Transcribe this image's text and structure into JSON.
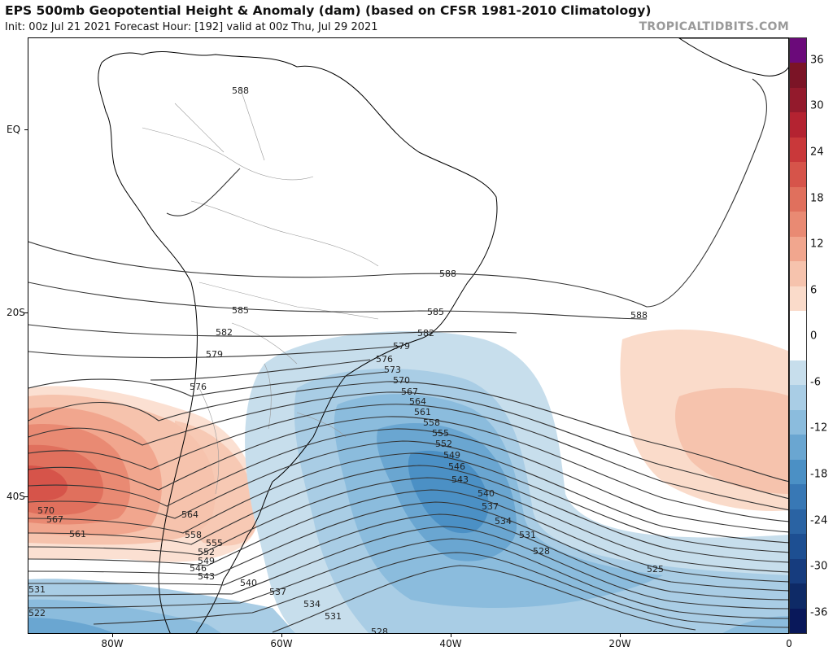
{
  "header": {
    "title": "EPS 500mb Geopotential Height & Anomaly (dam) (based on CFSR 1981-2010 Climatology)",
    "subtitle": "Init: 00z Jul 21 2021   Forecast Hour: [192]   valid at 00z Thu, Jul 29 2021",
    "credit": "TROPICALTIDBITS.COM"
  },
  "axes": {
    "lat_labels": [
      "EQ",
      "20S",
      "40S"
    ],
    "lon_labels": [
      "80W",
      "60W",
      "40W",
      "20W",
      "0"
    ]
  },
  "colorbar": {
    "labels": [
      "36",
      "30",
      "24",
      "18",
      "12",
      "6",
      "0",
      "-6",
      "-12",
      "-18",
      "-24",
      "-30",
      "-36"
    ],
    "colors_top_to_bottom": [
      "#6b0a7a",
      "#7b1426",
      "#931a2c",
      "#b42331",
      "#c9383a",
      "#d6544a",
      "#e0705d",
      "#e98a73",
      "#f1a68e",
      "#f6c3ad",
      "#fadbca",
      "#ffffff",
      "#ffffff",
      "#c7deec",
      "#a9cde5",
      "#8bbcdd",
      "#6aa6d1",
      "#4b90c5",
      "#3878b5",
      "#2a63a3",
      "#1d4f92",
      "#163c7e",
      "#0e2a66",
      "#09185a"
    ]
  },
  "contour_labels": {
    "north": [
      "588",
      "588",
      "588",
      "585",
      "585",
      "582",
      "582",
      "579",
      "579"
    ],
    "middle": [
      "576",
      "576",
      "573",
      "570",
      "567",
      "564",
      "561",
      "558",
      "555",
      "552",
      "549",
      "546",
      "543",
      "540",
      "537",
      "534",
      "531",
      "528",
      "525"
    ],
    "west": [
      "570",
      "567",
      "564",
      "561",
      "558",
      "555",
      "552",
      "549",
      "546",
      "543",
      "540",
      "537",
      "534",
      "531",
      "528",
      "531",
      "522"
    ]
  }
}
